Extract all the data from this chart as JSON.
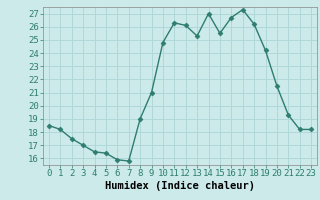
{
  "x": [
    0,
    1,
    2,
    3,
    4,
    5,
    6,
    7,
    8,
    9,
    10,
    11,
    12,
    13,
    14,
    15,
    16,
    17,
    18,
    19,
    20,
    21,
    22,
    23
  ],
  "y": [
    18.5,
    18.2,
    17.5,
    17.0,
    16.5,
    16.4,
    15.9,
    15.8,
    19.0,
    21.0,
    24.8,
    26.3,
    26.1,
    25.3,
    27.0,
    25.5,
    26.7,
    27.3,
    26.2,
    24.2,
    21.5,
    19.3,
    18.2,
    18.2
  ],
  "line_color": "#2e7d6e",
  "marker": "D",
  "marker_size": 2.5,
  "bg_color": "#cceaea",
  "grid_color": "#b0d8d8",
  "xlabel": "Humidex (Indice chaleur)",
  "xlim": [
    -0.5,
    23.5
  ],
  "ylim": [
    15.5,
    27.5
  ],
  "yticks": [
    16,
    17,
    18,
    19,
    20,
    21,
    22,
    23,
    24,
    25,
    26,
    27
  ],
  "xticks": [
    0,
    1,
    2,
    3,
    4,
    5,
    6,
    7,
    8,
    9,
    10,
    11,
    12,
    13,
    14,
    15,
    16,
    17,
    18,
    19,
    20,
    21,
    22,
    23
  ],
  "tick_fontsize": 6.5,
  "xlabel_fontsize": 7.5,
  "line_width": 1.0
}
